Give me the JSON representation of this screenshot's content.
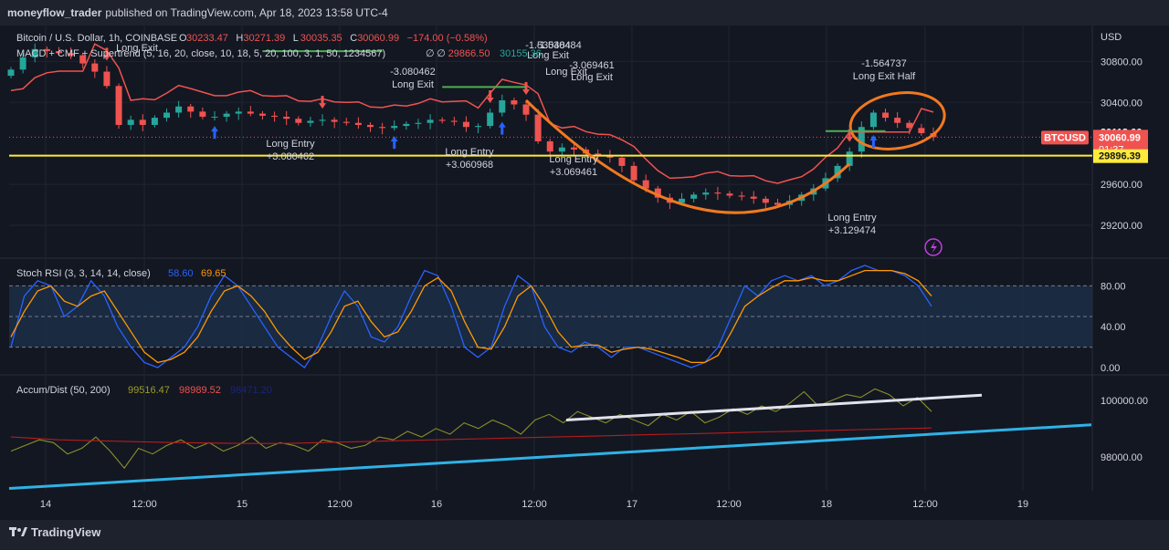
{
  "header": {
    "publisher": "moneyflow_trader",
    "published_text": "published on TradingView.com, Apr 18, 2023 13:58 UTC-4"
  },
  "footer": {
    "brand": "TradingView"
  },
  "colors": {
    "background": "#131722",
    "up": "#26a69a",
    "down": "#ef5350",
    "accent_orange": "#f0791f",
    "yellow": "#ffeb3b",
    "cyan": "#2fb2e6",
    "blue_rsi": "#2962ff",
    "orange_rsi": "#ff9800"
  },
  "chart_data": [
    {
      "type": "candlestick",
      "pane": "price",
      "legend": {
        "symbol": "Bitcoin / U.S. Dollar, 1h, COINBASE",
        "ohlc": [
          {
            "k": "O",
            "v": "30233.47"
          },
          {
            "k": "H",
            "v": "30271.39"
          },
          {
            "k": "L",
            "v": "30035.35"
          },
          {
            "k": "C",
            "v": "30060.99"
          },
          {
            "k": "",
            "v": "−174.00 (−0.58%)"
          }
        ],
        "indicator": "MACD + CMF + Supertrend (5, 16, 20, close, 10, 18, 5, 20, 100, 3, 1, 50, 1234567)",
        "indicator_values": [
          "∅",
          "∅",
          "29866.50",
          "30155.36"
        ]
      },
      "currency": "USD",
      "y_ticks": [
        "30800.00",
        "30400.00",
        "30113.66",
        "29600.00",
        "29200.00"
      ],
      "price_tags": {
        "symbol_tag": "BTCUSD",
        "last_price": "30060.99",
        "countdown": "01:37",
        "supertrend": "29896.39"
      },
      "x_ticks": [
        "14",
        "12:00",
        "15",
        "12:00",
        "16",
        "12:00",
        "17",
        "12:00",
        "18",
        "12:00",
        "19"
      ],
      "annotations": [
        {
          "text": "Long Exit",
          "side": "top"
        },
        {
          "text": "-1.530484",
          "side": "top"
        },
        {
          "text": "Long Exit",
          "side": "top"
        },
        {
          "text": "-3.080462",
          "side": "top"
        },
        {
          "text": "Long Exit",
          "side": "top"
        },
        {
          "text": "-1.530484",
          "side": "top"
        },
        {
          "text": "Long Exit",
          "side": "top"
        },
        {
          "text": "-3.069461",
          "side": "top"
        },
        {
          "text": "Long Exit",
          "side": "top"
        },
        {
          "text": "-1.564737",
          "side": "top"
        },
        {
          "text": "Long Exit Half",
          "side": "top"
        },
        {
          "text": "Long Entry",
          "side": "bottom"
        },
        {
          "text": "+3.080462",
          "side": "bottom"
        },
        {
          "text": "Long Entry",
          "side": "bottom"
        },
        {
          "text": "+3.060968",
          "side": "bottom"
        },
        {
          "text": "Long Entry",
          "side": "bottom"
        },
        {
          "text": "+3.069461",
          "side": "bottom"
        },
        {
          "text": "Long Entry",
          "side": "bottom"
        },
        {
          "text": "+3.129474",
          "side": "bottom"
        }
      ],
      "close_series": [
        30720,
        30840,
        30920,
        30900,
        30880,
        30860,
        30780,
        30700,
        30560,
        30180,
        30230,
        30180,
        30250,
        30300,
        30360,
        30310,
        30260,
        30260,
        30290,
        30310,
        30290,
        30270,
        30260,
        30240,
        30200,
        30220,
        30230,
        30210,
        30200,
        30180,
        30160,
        30150,
        30170,
        30190,
        30200,
        30230,
        30220,
        30210,
        30160,
        30170,
        30300,
        30420,
        30380,
        30280,
        30020,
        29920,
        29960,
        29940,
        29900,
        29880,
        29860,
        29780,
        29640,
        29560,
        29470,
        29420,
        29460,
        29500,
        29520,
        29510,
        29490,
        29480,
        29460,
        29420,
        29400,
        29440,
        29500,
        29560,
        29660,
        29780,
        29920,
        30160,
        30300,
        30250,
        30200,
        30150,
        30100,
        30060.99
      ]
    },
    {
      "type": "line",
      "pane": "stoch_rsi",
      "legend": {
        "title": "Stoch RSI (3, 3, 14, 14, close)",
        "k": "58.60",
        "d": "69.65"
      },
      "y_ticks": [
        "80.00",
        "40.00",
        "0.00"
      ],
      "ylim": [
        0,
        100
      ],
      "series": [
        {
          "values": [
            20,
            70,
            85,
            80,
            50,
            60,
            85,
            70,
            40,
            20,
            5,
            0,
            10,
            20,
            40,
            70,
            90,
            80,
            60,
            40,
            20,
            10,
            0,
            20,
            50,
            75,
            60,
            30,
            25,
            40,
            70,
            95,
            90,
            60,
            20,
            10,
            20,
            60,
            90,
            80,
            40,
            20,
            15,
            25,
            20,
            10,
            20,
            20,
            15,
            10,
            5,
            0,
            5,
            20,
            50,
            80,
            70,
            85,
            90,
            85,
            90,
            80,
            85,
            95,
            100,
            95,
            95,
            90,
            80,
            60
          ]
        },
        {
          "values": [
            30,
            55,
            75,
            80,
            65,
            60,
            70,
            75,
            55,
            35,
            15,
            5,
            8,
            15,
            30,
            55,
            75,
            80,
            70,
            55,
            35,
            20,
            8,
            15,
            35,
            60,
            65,
            45,
            30,
            35,
            55,
            80,
            88,
            75,
            45,
            20,
            18,
            40,
            70,
            80,
            60,
            35,
            20,
            22,
            22,
            15,
            18,
            20,
            18,
            14,
            10,
            5,
            5,
            12,
            35,
            60,
            70,
            78,
            85,
            85,
            88,
            85,
            85,
            90,
            95,
            95,
            95,
            92,
            85,
            70
          ]
        }
      ]
    },
    {
      "type": "line",
      "pane": "accum_dist",
      "legend": {
        "title": "Accum/Dist (50, 200)",
        "v1": "99516.47",
        "v2": "98989.52",
        "v3": "98471.20"
      },
      "y_ticks": [
        "100000.00",
        "98000.00"
      ],
      "ylim": [
        96800,
        100800
      ],
      "series": [
        {
          "values": [
            98200,
            98400,
            98600,
            98500,
            98100,
            98300,
            98700,
            98200,
            97600,
            98300,
            98100,
            98400,
            98600,
            98300,
            98500,
            98200,
            98400,
            98700,
            98300,
            98500,
            98400,
            98200,
            98600,
            98500,
            98300,
            98400,
            98700,
            98600,
            98900,
            98700,
            99000,
            98800,
            99200,
            99000,
            99300,
            99100,
            98800,
            99300,
            99500,
            99200,
            99600,
            99400,
            99200,
            99500,
            99300,
            99100,
            99500,
            99300,
            99600,
            99200,
            99400,
            99700,
            99500,
            99800,
            99600,
            99900,
            100300,
            99800,
            100000,
            100200,
            100100,
            100400,
            100200,
            99800,
            100100,
            99600
          ]
        },
        {
          "values": [
            98700,
            98650,
            98600,
            98580,
            98560,
            98540,
            98520,
            98500,
            98490,
            98480,
            98470,
            98470,
            98480,
            98500,
            98520,
            98540,
            98560,
            98580,
            98600,
            98620,
            98640,
            98660,
            98680,
            98700,
            98720,
            98740,
            98760,
            98780,
            98800,
            98820,
            98840,
            98860,
            98880,
            98900,
            98920,
            98940,
            98960,
            98980,
            99000,
            99020
          ]
        }
      ]
    }
  ]
}
